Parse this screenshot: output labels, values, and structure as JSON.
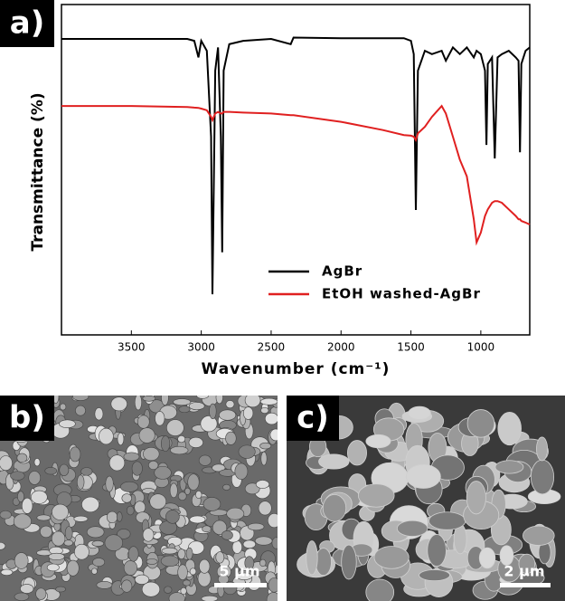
{
  "chart_data": {
    "type": "line",
    "panel_label": "a)",
    "x_label": "Wavenumber (cm⁻¹)",
    "y_label": "Transmittance (%)",
    "x": [
      4000,
      3500,
      3100,
      3050,
      3020,
      3000,
      2960,
      2930,
      2920,
      2900,
      2880,
      2860,
      2850,
      2840,
      2800,
      2700,
      2500,
      2360,
      2340,
      2000,
      1700,
      1550,
      1500,
      1480,
      1465,
      1450,
      1400,
      1350,
      1280,
      1250,
      1200,
      1150,
      1100,
      1050,
      1030,
      1000,
      970,
      960,
      950,
      920,
      900,
      880,
      850,
      800,
      750,
      730,
      720,
      710,
      680,
      650
    ],
    "series": [
      {
        "name": "AgBr",
        "color": "#000000",
        "values": [
          89.6,
          89.6,
          89.6,
          89,
          84,
          89,
          86,
          60,
          12.3,
          80,
          87,
          60,
          25,
          80,
          88,
          89,
          89.6,
          88,
          90,
          89.8,
          89.8,
          89.8,
          89,
          85,
          37.8,
          80,
          86,
          85,
          86,
          83,
          87,
          85,
          87,
          84,
          86,
          85,
          80,
          57.5,
          82,
          84,
          53.4,
          84,
          85,
          86,
          84,
          83,
          55.3,
          82,
          86,
          87
        ]
      },
      {
        "name": "EtOH washed-AgBr",
        "color": "#e02020",
        "values": [
          69.3,
          69.3,
          69,
          68.8,
          68.7,
          68.5,
          68,
          66,
          65,
          67,
          67.5,
          67,
          67,
          67.5,
          67.5,
          67.3,
          67,
          66.5,
          66.5,
          64.5,
          62,
          60.5,
          60.3,
          60,
          59,
          61,
          63,
          66,
          69.3,
          67,
          60,
          53,
          48,
          35,
          28,
          31,
          36,
          37,
          38,
          40,
          40.5,
          40.5,
          40,
          38,
          36,
          35,
          35,
          34.5,
          34,
          33.4
        ]
      }
    ],
    "xlim": [
      4000,
      650
    ],
    "ylim": [
      0,
      100
    ],
    "xticks": [
      3500,
      3000,
      2500,
      2000,
      1500,
      1000
    ],
    "legend": "lower-right"
  },
  "images": [
    {
      "label": "b)",
      "scale_bar": "5 μm"
    },
    {
      "label": "c)",
      "scale_bar": "2 μm"
    }
  ]
}
